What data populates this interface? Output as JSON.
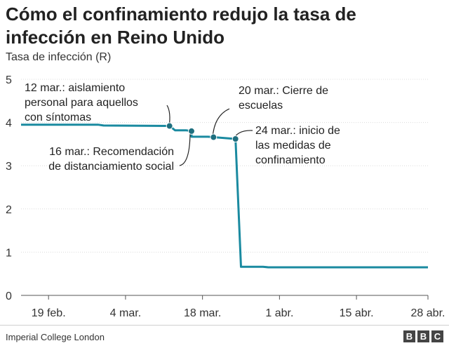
{
  "chart_data": {
    "type": "line",
    "title": "Cómo el confinamiento redujo la tasa de infección en Reino Unido",
    "ylabel": "Tasa de infección (R)",
    "ylim": [
      0,
      5
    ],
    "yticks": [
      0,
      1,
      2,
      3,
      4,
      5
    ],
    "xlim": [
      "2020-02-14",
      "2020-04-28"
    ],
    "xticks": [
      {
        "date": "2020-02-19",
        "label": "19 feb."
      },
      {
        "date": "2020-03-04",
        "label": "4 mar."
      },
      {
        "date": "2020-03-18",
        "label": "18 mar."
      },
      {
        "date": "2020-04-01",
        "label": "1 abr."
      },
      {
        "date": "2020-04-15",
        "label": "15 abr."
      },
      {
        "date": "2020-04-28",
        "label": "28 abr."
      }
    ],
    "grid": true,
    "color": "#1a8aa0",
    "series": [
      {
        "points": [
          [
            "2020-02-14",
            3.95
          ],
          [
            "2020-02-28",
            3.95
          ],
          [
            "2020-02-29",
            3.93
          ],
          [
            "2020-03-12",
            3.92
          ],
          [
            "2020-03-13",
            3.82
          ],
          [
            "2020-03-15",
            3.82
          ],
          [
            "2020-03-16",
            3.8
          ],
          [
            "2020-03-16",
            3.67
          ],
          [
            "2020-03-19",
            3.67
          ],
          [
            "2020-03-20",
            3.66
          ],
          [
            "2020-03-22",
            3.64
          ],
          [
            "2020-03-24",
            3.62
          ],
          [
            "2020-03-25",
            0.66
          ],
          [
            "2020-03-29",
            0.66
          ],
          [
            "2020-03-30",
            0.65
          ],
          [
            "2020-04-28",
            0.65
          ]
        ]
      }
    ],
    "markers": [
      {
        "date": "2020-03-12",
        "y": 3.92
      },
      {
        "date": "2020-03-16",
        "y": 3.8
      },
      {
        "date": "2020-03-20",
        "y": 3.66
      },
      {
        "date": "2020-03-24",
        "y": 3.62
      }
    ],
    "annotations": [
      {
        "lines": [
          "12 mar.: aislamiento",
          "personal para aquellos",
          "con síntomas"
        ]
      },
      {
        "lines": [
          "16 mar.: Recomendación",
          "de distanciamiento social"
        ]
      },
      {
        "lines": [
          "20 mar.: Cierre de",
          "escuelas"
        ]
      },
      {
        "lines": [
          "24 mar.: inicio de",
          "las medidas de",
          "confinamiento"
        ]
      }
    ]
  },
  "footer": {
    "source": "Imperial College London",
    "logo_letters": [
      "B",
      "B",
      "C"
    ]
  }
}
